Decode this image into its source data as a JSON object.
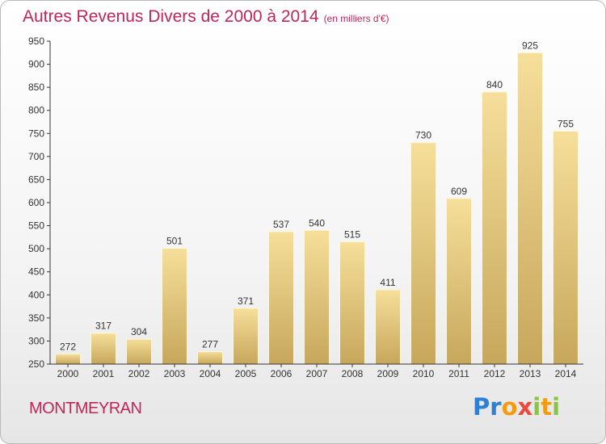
{
  "title": "Autres Revenus Divers de 2000 à 2014",
  "subtitle": "(en milliers d'€)",
  "place": "MONTMEYRAN",
  "logo": {
    "letters": [
      "P",
      "r",
      "o",
      "x",
      "i",
      "t",
      "i"
    ],
    "colors": [
      "#2e7fd6",
      "#2e7fd6",
      "#f39c12",
      "#e74c3c",
      "#8bc34a",
      "#f39c12",
      "#8bc34a"
    ]
  },
  "colors": {
    "title": "#c0255a",
    "bar_light": "#f6df9a",
    "bar_dark": "#c7a75c"
  },
  "chart_data": {
    "type": "bar",
    "title": "Autres Revenus Divers de 2000 à 2014",
    "categories": [
      "2000",
      "2001",
      "2002",
      "2003",
      "2004",
      "2005",
      "2006",
      "2007",
      "2008",
      "2009",
      "2010",
      "2011",
      "2012",
      "2013",
      "2014"
    ],
    "values": [
      272,
      317,
      304,
      501,
      277,
      371,
      537,
      540,
      515,
      411,
      730,
      609,
      840,
      925,
      755
    ],
    "ylim": [
      250,
      950
    ],
    "yticks": [
      250,
      300,
      350,
      400,
      450,
      500,
      550,
      600,
      650,
      700,
      750,
      800,
      850,
      900,
      950
    ],
    "grid": false,
    "data_labels": true
  }
}
